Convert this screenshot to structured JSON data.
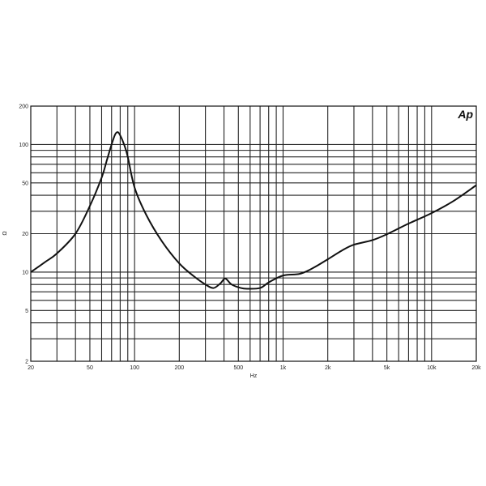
{
  "chart_data": {
    "type": "line",
    "title": "",
    "xlabel": "Hz",
    "ylabel": "Ω",
    "xscale": "log",
    "yscale": "log",
    "xlim": [
      20,
      20000
    ],
    "ylim": [
      2,
      200
    ],
    "grid": true,
    "logo": "Ap",
    "x_ticks": [
      {
        "value": 20,
        "label": "20"
      },
      {
        "value": 50,
        "label": "50"
      },
      {
        "value": 100,
        "label": "100"
      },
      {
        "value": 200,
        "label": "200"
      },
      {
        "value": 500,
        "label": "500"
      },
      {
        "value": 1000,
        "label": "1k"
      },
      {
        "value": 2000,
        "label": "2k"
      },
      {
        "value": 5000,
        "label": "5k"
      },
      {
        "value": 10000,
        "label": "10k"
      },
      {
        "value": 20000,
        "label": "20k"
      }
    ],
    "y_ticks": [
      {
        "value": 200,
        "label": "200"
      },
      {
        "value": 100,
        "label": "100"
      },
      {
        "value": 50,
        "label": "50"
      },
      {
        "value": 20,
        "label": "20"
      },
      {
        "value": 10,
        "label": "10"
      },
      {
        "value": 5,
        "label": "5"
      },
      {
        "value": 2,
        "label": "2"
      }
    ],
    "series": [
      {
        "color": "#111111",
        "x": [
          20,
          25,
          30,
          40,
          50,
          60,
          65,
          70,
          74,
          77,
          80,
          85,
          90,
          100,
          120,
          153,
          200,
          250,
          300,
          340,
          380,
          408,
          450,
          520,
          572,
          700,
          800,
          1000,
          1300,
          1600,
          2000,
          2500,
          3000,
          4000,
          5000,
          7000,
          10000,
          14000,
          20000
        ],
        "y": [
          10,
          12,
          14,
          20,
          33,
          55,
          75,
          100,
          120,
          125,
          118,
          100,
          80,
          46,
          28,
          17.4,
          11.7,
          9.3,
          8,
          7.5,
          8.2,
          8.9,
          8,
          7.5,
          7.4,
          7.5,
          8.3,
          9.4,
          9.7,
          10.8,
          12.6,
          14.8,
          16.4,
          17.8,
          19.8,
          24,
          29,
          36,
          48
        ]
      }
    ]
  }
}
